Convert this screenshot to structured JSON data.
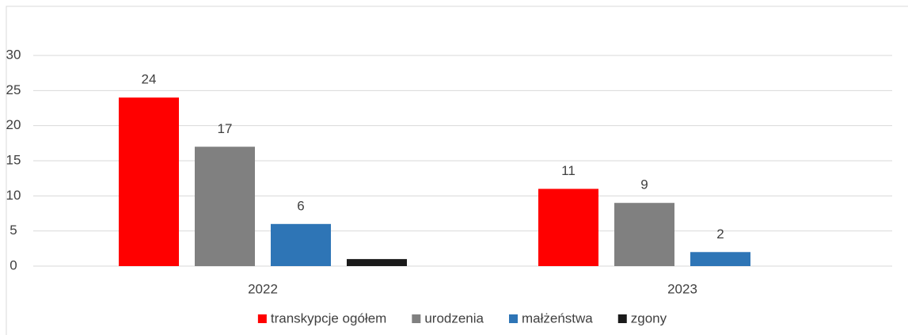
{
  "chart_data": {
    "type": "bar",
    "categories": [
      "2022",
      "2023"
    ],
    "series": [
      {
        "name": "transkypcje ogółem",
        "color": "#ff0000",
        "values": [
          24,
          11
        ]
      },
      {
        "name": "urodzenia",
        "color": "#808080",
        "values": [
          17,
          9
        ]
      },
      {
        "name": "małżeństwa",
        "color": "#2e75b6",
        "values": [
          6,
          2
        ]
      },
      {
        "name": "zgony",
        "color": "#1a1a1a",
        "values": [
          1,
          null
        ],
        "data_labels": false
      }
    ],
    "ylim": [
      0,
      30
    ],
    "yticks": [
      0,
      5,
      10,
      15,
      20,
      25,
      30
    ],
    "grid": true,
    "legend": "bottom"
  }
}
